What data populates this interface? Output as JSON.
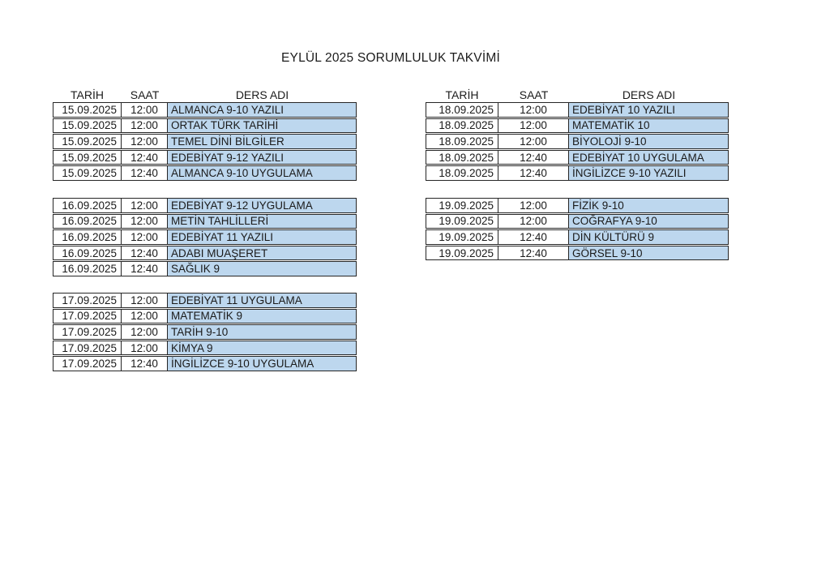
{
  "title": "EYLÜL 2025 SORUMLULUK TAKVİMİ",
  "columns": {
    "tarih": "TARİH",
    "saat": "SAAT",
    "ders": "DERS ADI"
  },
  "colors": {
    "course_fill": "#BDD7EE",
    "border": "#262626",
    "text": "#1A1A1A"
  },
  "tables": [
    {
      "side": "left",
      "blocks": [
        {
          "rows": [
            {
              "date": "15.09.2025",
              "time": "12:00",
              "course": "ALMANCA 9-10 YAZILI"
            },
            {
              "date": "15.09.2025",
              "time": "12:00",
              "course": "ORTAK TÜRK TARİHİ"
            },
            {
              "date": "15.09.2025",
              "time": "12:00",
              "course": "TEMEL DİNİ BİLGİLER"
            },
            {
              "date": "15.09.2025",
              "time": "12:40",
              "course": "EDEBİYAT 9-12 YAZILI"
            },
            {
              "date": "15.09.2025",
              "time": "12:40",
              "course": "ALMANCA 9-10 UYGULAMA"
            }
          ]
        },
        {
          "rows": [
            {
              "date": "16.09.2025",
              "time": "12:00",
              "course": "EDEBİYAT 9-12 UYGULAMA"
            },
            {
              "date": "16.09.2025",
              "time": "12:00",
              "course": "METİN TAHLİLLERİ"
            },
            {
              "date": "16.09.2025",
              "time": "12:00",
              "course": "EDEBİYAT 11 YAZILI"
            },
            {
              "date": "16.09.2025",
              "time": "12:40",
              "course": "ADABI MUAŞERET"
            },
            {
              "date": "16.09.2025",
              "time": "12:40",
              "course": "SAĞLIK 9"
            }
          ]
        },
        {
          "rows": [
            {
              "date": "17.09.2025",
              "time": "12:00",
              "course": "EDEBİYAT 11 UYGULAMA"
            },
            {
              "date": "17.09.2025",
              "time": "12:00",
              "course": "MATEMATİK 9"
            },
            {
              "date": "17.09.2025",
              "time": "12:00",
              "course": "TARİH 9-10"
            },
            {
              "date": "17.09.2025",
              "time": "12:00",
              "course": "KİMYA 9"
            },
            {
              "date": "17.09.2025",
              "time": "12:40",
              "course": "İNGİLİZCE 9-10 UYGULAMA"
            }
          ]
        }
      ]
    },
    {
      "side": "right",
      "blocks": [
        {
          "rows": [
            {
              "date": "18.09.2025",
              "time": "12:00",
              "course": "EDEBİYAT 10 YAZILI"
            },
            {
              "date": "18.09.2025",
              "time": "12:00",
              "course": "MATEMATİK 10"
            },
            {
              "date": "18.09.2025",
              "time": "12:00",
              "course": "BİYOLOJİ 9-10"
            },
            {
              "date": "18.09.2025",
              "time": "12:40",
              "course": "EDEBİYAT 10 UYGULAMA"
            },
            {
              "date": "18.09.2025",
              "time": "12:40",
              "course": "İNGİLİZCE 9-10 YAZILI"
            }
          ]
        },
        {
          "rows": [
            {
              "date": "19.09.2025",
              "time": "12:00",
              "course": "FİZİK 9-10"
            },
            {
              "date": "19.09.2025",
              "time": "12:00",
              "course": "COĞRAFYA 9-10"
            },
            {
              "date": "19.09.2025",
              "time": "12:40",
              "course": "DİN KÜLTÜRÜ 9"
            },
            {
              "date": "19.09.2025",
              "time": "12:40",
              "course": "GÖRSEL 9-10"
            }
          ]
        }
      ]
    }
  ]
}
